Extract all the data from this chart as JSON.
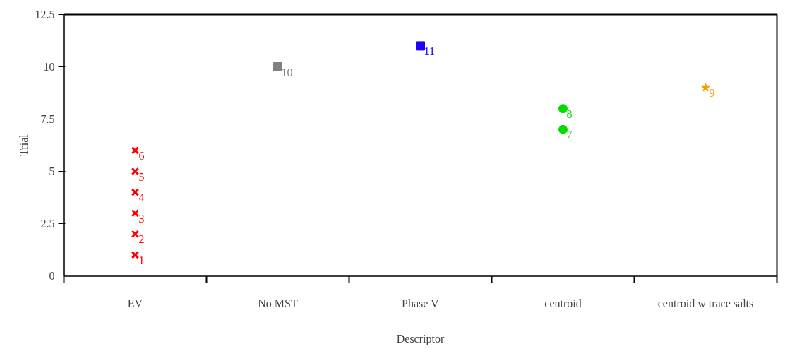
{
  "chart_data": {
    "type": "scatter",
    "xlabel": "Descriptor",
    "ylabel": "Trial",
    "categories": [
      "EV",
      "No MST",
      "Phase V",
      "centroid",
      "centroid w trace salts"
    ],
    "ylim": [
      0,
      12.5
    ],
    "yticks": [
      0,
      2.5,
      5,
      7.5,
      10,
      12.5
    ],
    "grid": false,
    "data_labels": true,
    "series": [
      {
        "color": "#ff0000",
        "marker": "cross",
        "x": [
          "EV",
          "EV",
          "EV",
          "EV",
          "EV",
          "EV"
        ],
        "values": [
          1,
          2,
          3,
          4,
          5,
          6
        ]
      },
      {
        "color": "#808080",
        "marker": "square",
        "x": [
          "No MST"
        ],
        "values": [
          10
        ]
      },
      {
        "color": "#1f00ff",
        "marker": "square",
        "x": [
          "Phase V"
        ],
        "values": [
          11
        ]
      },
      {
        "color": "#00dd00",
        "marker": "circle",
        "x": [
          "centroid",
          "centroid"
        ],
        "values": [
          7,
          8
        ]
      },
      {
        "color": "#ff9900",
        "marker": "star",
        "x": [
          "centroid w trace salts"
        ],
        "values": [
          9
        ]
      }
    ]
  }
}
